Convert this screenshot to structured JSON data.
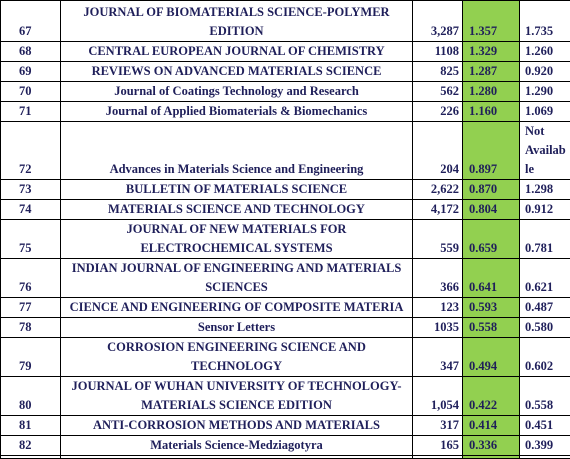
{
  "table": {
    "rows": [
      [
        "67",
        "JOURNAL OF BIOMATERIALS SCIENCE-POLYMER EDITION",
        "3,287",
        "1.357",
        "1.735"
      ],
      [
        "68",
        "CENTRAL EUROPEAN JOURNAL OF CHEMISTRY",
        "1108",
        "1.329",
        "1.260"
      ],
      [
        "69",
        "REVIEWS ON ADVANCED MATERIALS SCIENCE",
        "825",
        "1.287",
        "0.920"
      ],
      [
        "70",
        "Journal of Coatings Technology and Research",
        "562",
        "1.280",
        "1.290"
      ],
      [
        "71",
        "Journal of Applied Biomaterials & Biomechanics",
        "226",
        "1.160",
        "1.069"
      ],
      [
        "72",
        "Advances in Materials Science and Engineering",
        "204",
        "0.897",
        "Not Available"
      ],
      [
        "73",
        "BULLETIN OF MATERIALS SCIENCE",
        "2,622",
        "0.870",
        "1.298"
      ],
      [
        "74",
        "MATERIALS SCIENCE AND TECHNOLOGY",
        "4,172",
        "0.804",
        "0.912"
      ],
      [
        "75",
        "JOURNAL OF NEW MATERIALS FOR ELECTROCHEMICAL SYSTEMS",
        "559",
        "0.659",
        "0.781"
      ],
      [
        "76",
        "INDIAN JOURNAL OF ENGINEERING AND MATERIALS SCIENCES",
        "366",
        "0.641",
        "0.621"
      ],
      [
        "77",
        "CIENCE AND ENGINEERING OF COMPOSITE MATERIA",
        "123",
        "0.593",
        "0.487"
      ],
      [
        "78",
        "Sensor Letters",
        "1035",
        "0.558",
        "0.580"
      ],
      [
        "79",
        "CORROSION ENGINEERING SCIENCE AND TECHNOLOGY",
        "347",
        "0.494",
        "0.602"
      ],
      [
        "80",
        "JOURNAL OF WUHAN UNIVERSITY OF TECHNOLOGY-MATERIALS SCIENCE EDITION",
        "1,054",
        "0.422",
        "0.558"
      ],
      [
        "81",
        "ANTI-CORROSION METHODS AND MATERIALS",
        "317",
        "0.414",
        "0.451"
      ],
      [
        "82",
        "Materials Science-Medziagotyra",
        "165",
        "0.336",
        "0.399"
      ]
    ]
  }
}
